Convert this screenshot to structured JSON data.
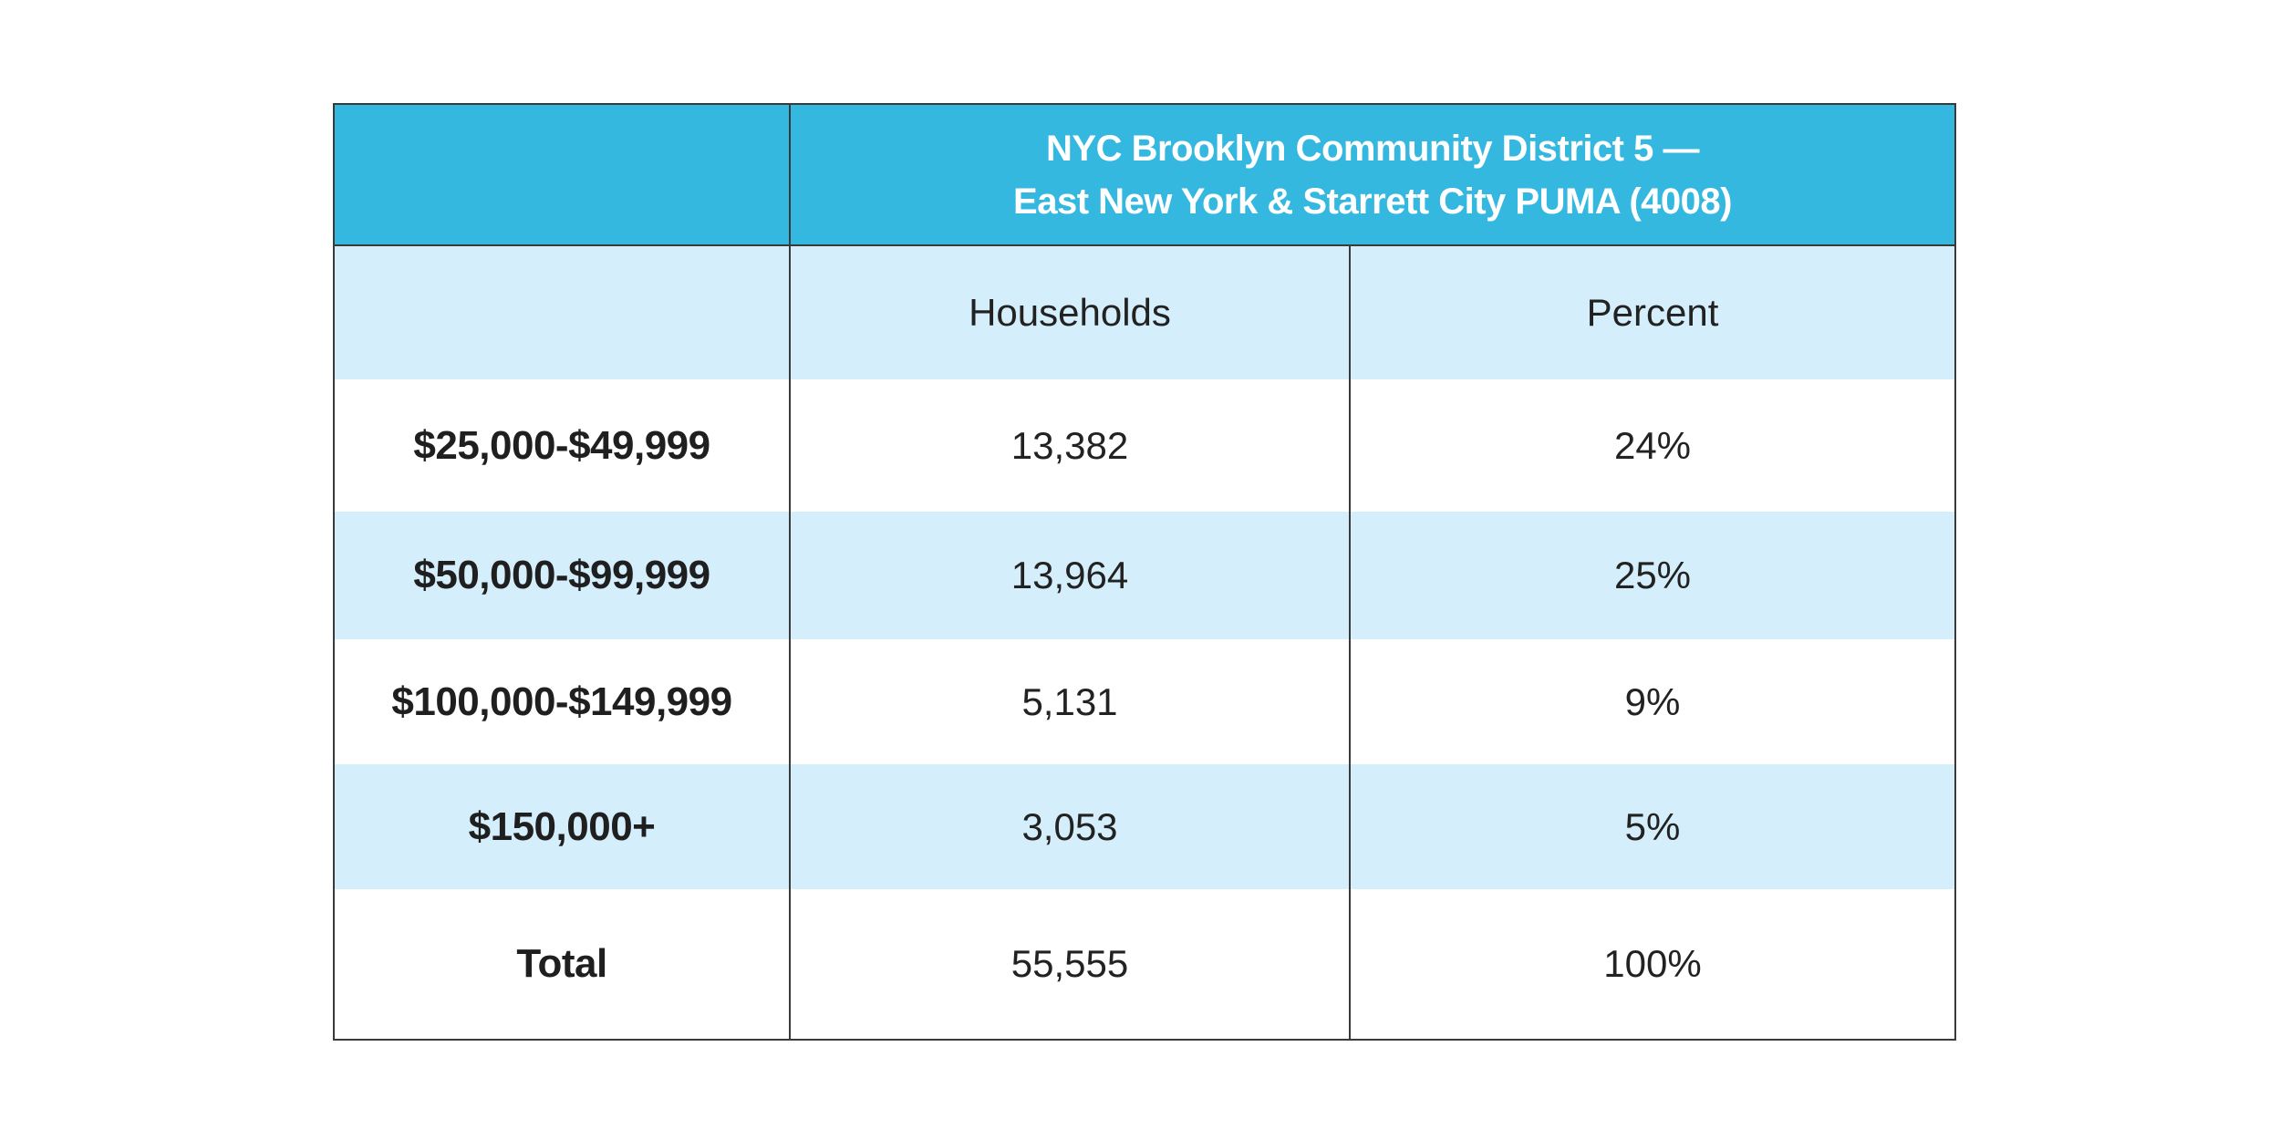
{
  "table": {
    "header": {
      "title_line1": "NYC Brooklyn Community District 5 —",
      "title_line2": "East New York & Starrett City PUMA (4008)"
    },
    "columns": {
      "households": "Households",
      "percent": "Percent"
    },
    "rows": [
      {
        "label": "$25,000-$49,999",
        "households": "13,382",
        "percent": "24%"
      },
      {
        "label": "$50,000-$99,999",
        "households": "13,964",
        "percent": "25%"
      },
      {
        "label": "$100,000-$149,999",
        "households": "5,131",
        "percent": "9%"
      },
      {
        "label": "$150,000+",
        "households": "3,053",
        "percent": "5%"
      },
      {
        "label": "Total",
        "households": "55,555",
        "percent": "100%"
      }
    ]
  }
}
